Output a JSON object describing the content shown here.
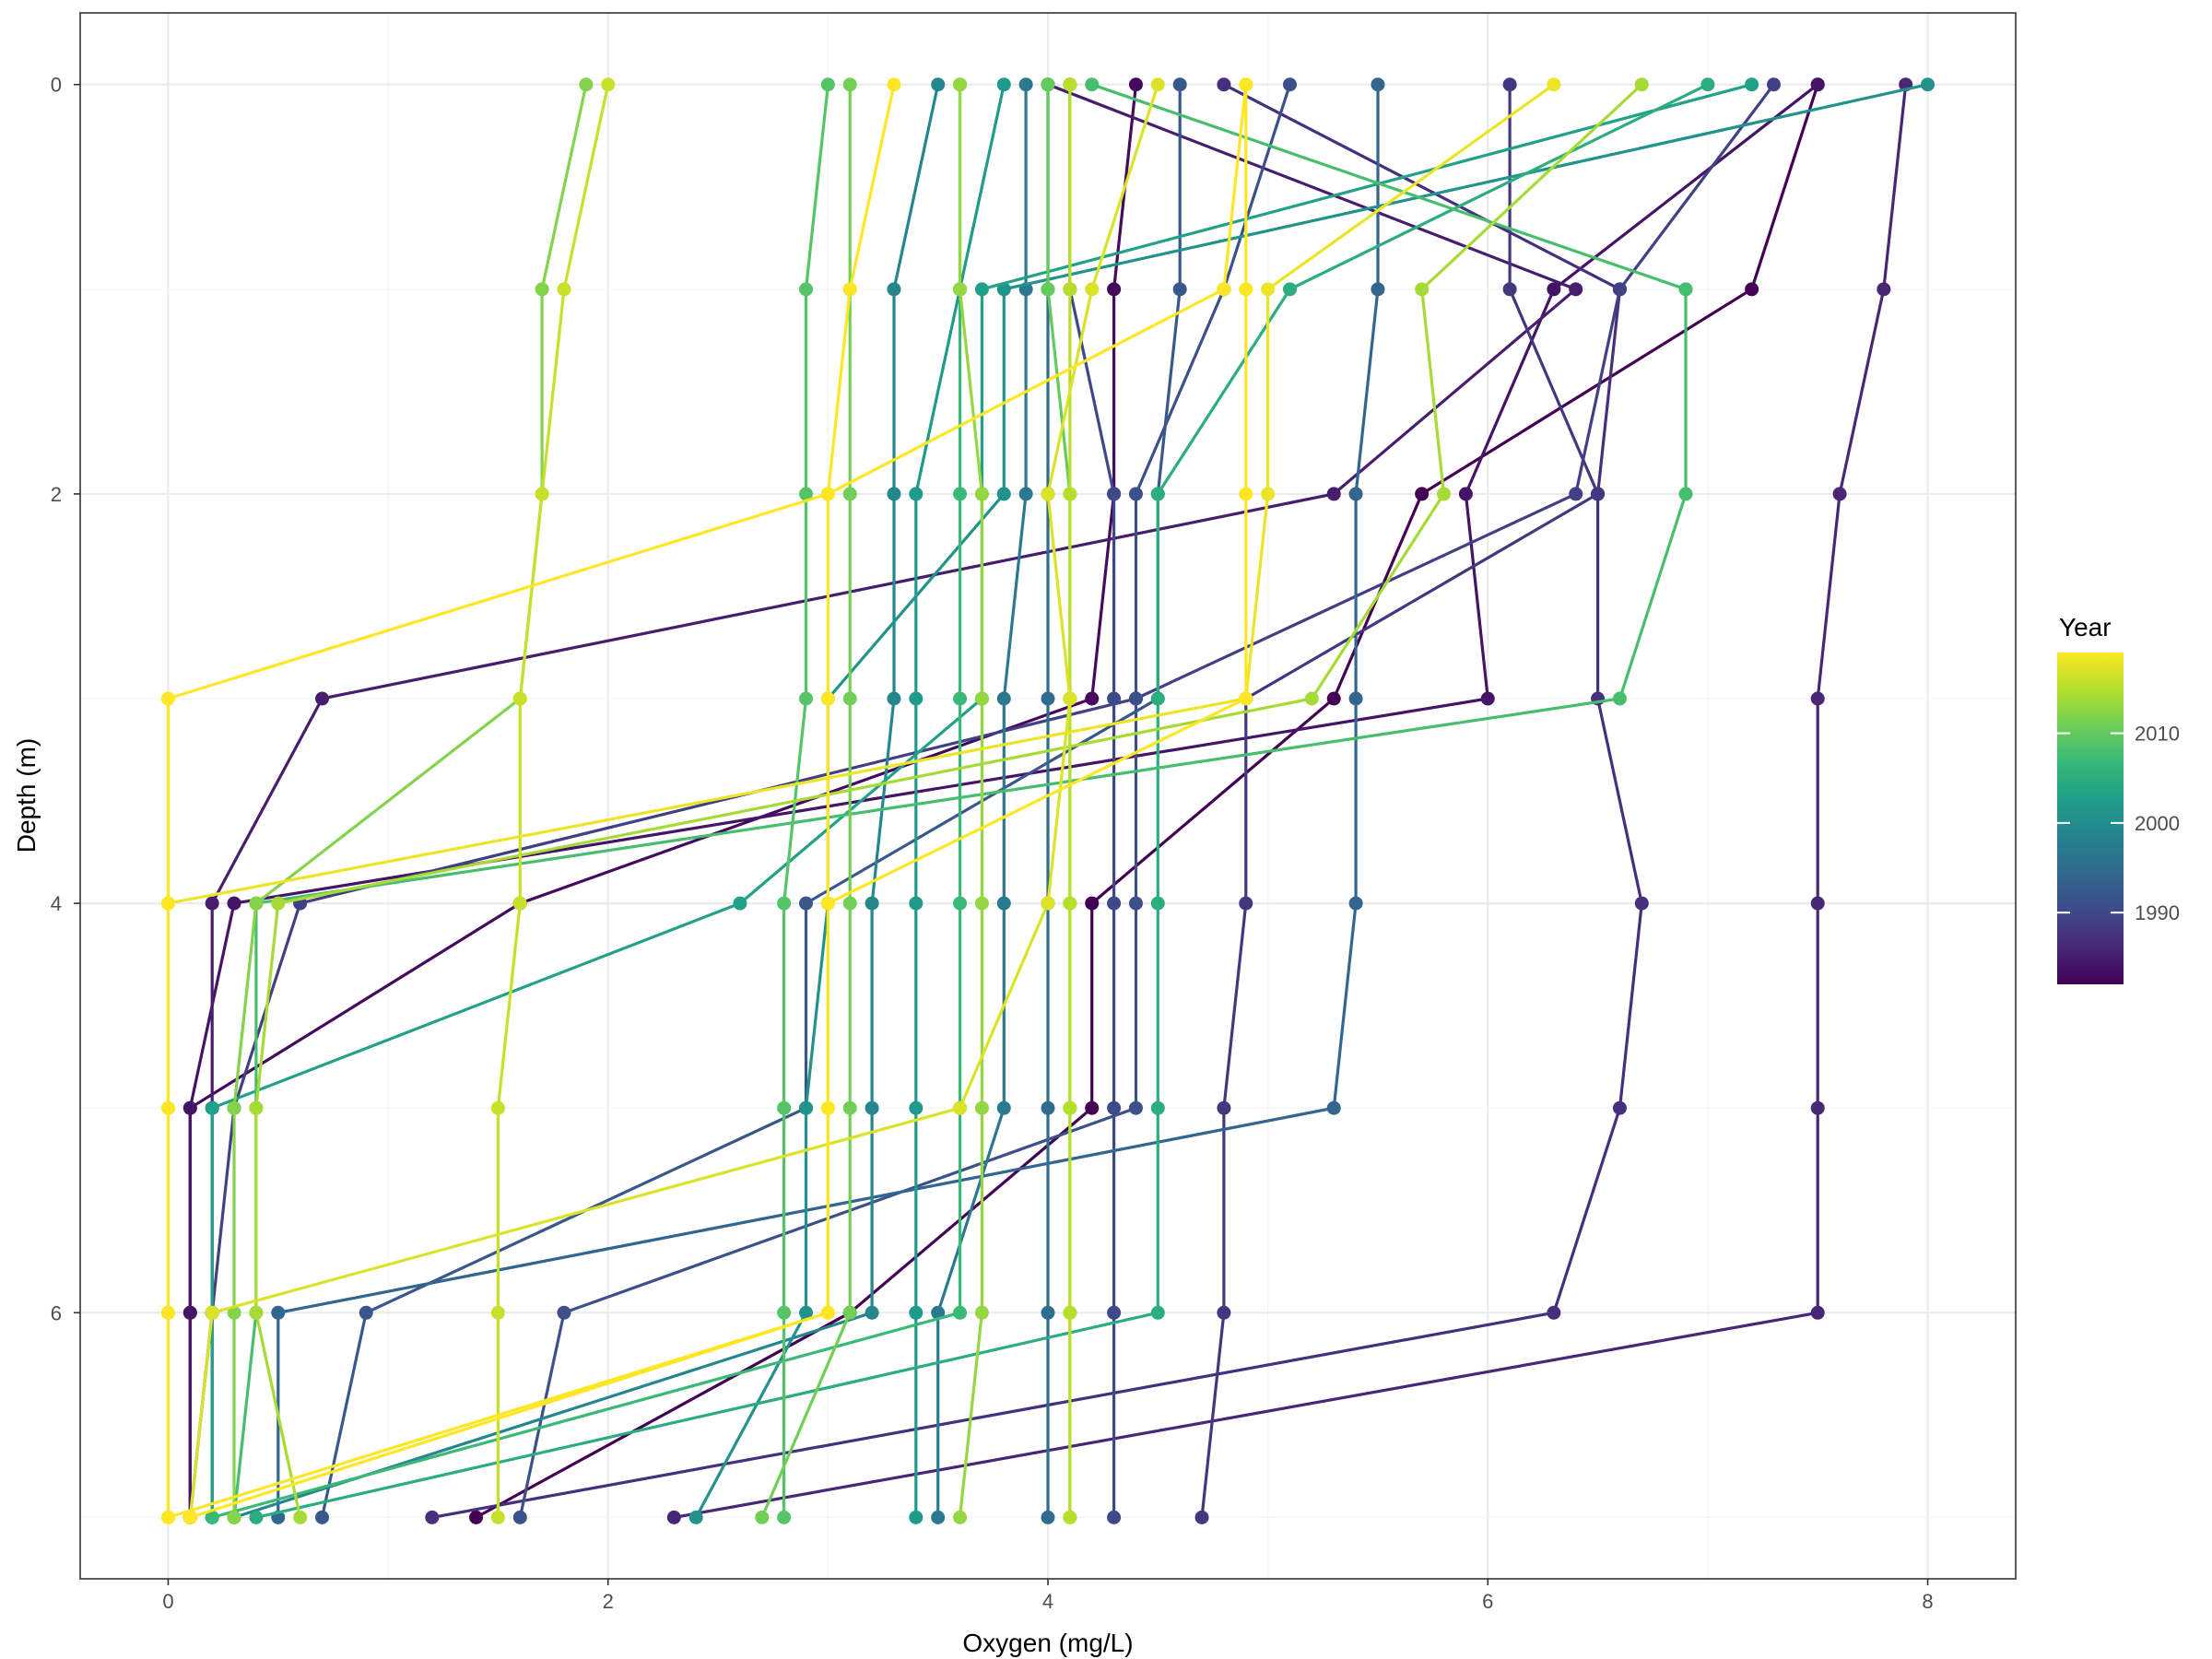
{
  "chart_data": {
    "type": "line",
    "xlabel": "Oxygen (mg/L)",
    "ylabel": "Depth (m)",
    "xlim": [
      -0.4,
      8.4
    ],
    "ylim": [
      7.3,
      -0.35
    ],
    "y_reversed": true,
    "x_ticks": [
      0,
      2,
      4,
      6,
      8
    ],
    "y_ticks": [
      0,
      2,
      4,
      6
    ],
    "grid": true,
    "theme": "bw",
    "legend": {
      "title": "Year",
      "position": "right",
      "type": "colorbar",
      "palette": "viridis",
      "range": [
        1982,
        2019
      ],
      "breaks": [
        1990,
        2000,
        2010
      ]
    },
    "series": [
      {
        "year": 1982,
        "oxygen": [
          7.5,
          7.2,
          5.7,
          5.3,
          4.2,
          4.2,
          3.1,
          1.4
        ],
        "depth": [
          0,
          1,
          2,
          3,
          4,
          5,
          6,
          7
        ]
      },
      {
        "year": 1983,
        "oxygen": [
          4.4,
          4.3,
          4.3,
          4.2,
          1.6,
          0.1,
          0.1,
          0.1
        ],
        "depth": [
          0,
          1,
          2,
          3,
          4,
          5,
          6,
          7
        ]
      },
      {
        "year": 1984,
        "oxygen": [
          7.5,
          6.3,
          5.9,
          6.0,
          0.3,
          0.1,
          0.1,
          0.1
        ],
        "depth": [
          0,
          1,
          2,
          3,
          4,
          5,
          6,
          7
        ]
      },
      {
        "year": 1985,
        "oxygen": [
          4.0,
          6.4,
          5.3,
          0.7,
          0.2,
          0.2,
          0.2,
          0.2
        ],
        "depth": [
          0,
          1,
          2,
          3,
          4,
          5,
          6,
          7
        ]
      },
      {
        "year": 1986,
        "oxygen": [
          7.9,
          7.8,
          7.6,
          7.5,
          7.5,
          7.5,
          7.5,
          2.3
        ],
        "depth": [
          0,
          1,
          2,
          3,
          4,
          5,
          6,
          7
        ]
      },
      {
        "year": 1987,
        "oxygen": [
          4.8,
          6.6,
          6.5,
          6.5,
          6.7,
          6.6,
          6.3,
          1.2
        ],
        "depth": [
          0,
          1,
          2,
          3,
          4,
          5,
          6,
          7
        ]
      },
      {
        "year": 1988,
        "oxygen": [
          6.1,
          6.1,
          6.5,
          4.9,
          4.9,
          4.8,
          4.8,
          4.7
        ],
        "depth": [
          0,
          1,
          2,
          3,
          4,
          5,
          6,
          7
        ]
      },
      {
        "year": 1989,
        "oxygen": [
          7.3,
          6.6,
          6.4,
          4.4,
          0.6,
          0.3,
          0.2,
          0.1
        ],
        "depth": [
          0,
          1,
          2,
          3,
          4,
          5,
          6,
          7
        ]
      },
      {
        "year": 1990,
        "oxygen": [
          4.1,
          4.1,
          4.3,
          4.3,
          4.3,
          4.3,
          4.3,
          4.3
        ],
        "depth": [
          0,
          1,
          2,
          3,
          4,
          5,
          6,
          7
        ]
      },
      {
        "year": 1991,
        "oxygen": [
          5.1,
          4.8,
          4.4,
          4.4,
          4.4,
          4.4,
          1.8,
          1.6
        ],
        "depth": [
          0,
          1,
          2,
          3,
          4,
          5,
          6,
          7
        ]
      },
      {
        "year": 1992,
        "oxygen": [
          4.6,
          4.6,
          4.5,
          4.5,
          2.9,
          2.9,
          0.9,
          0.7
        ],
        "depth": [
          0,
          1,
          2,
          3,
          4,
          5,
          6,
          7
        ]
      },
      {
        "year": 1994,
        "oxygen": [
          5.5,
          5.5,
          5.4,
          5.4,
          5.4,
          5.3,
          0.5,
          0.5
        ],
        "depth": [
          0,
          1,
          2,
          3,
          4,
          5,
          6,
          7
        ]
      },
      {
        "year": 1995,
        "oxygen": [
          4.0,
          4.0,
          4.0,
          4.0,
          4.0,
          4.0,
          4.0,
          4.0
        ],
        "depth": [
          0,
          1,
          2,
          3,
          4,
          5,
          6,
          7
        ]
      },
      {
        "year": 1997,
        "oxygen": [
          3.9,
          3.9,
          3.9,
          3.8,
          3.8,
          3.8,
          3.5,
          3.5
        ],
        "depth": [
          0,
          1,
          2,
          3,
          4,
          5,
          6,
          7
        ]
      },
      {
        "year": 1999,
        "oxygen": [
          3.5,
          3.3,
          3.3,
          3.3,
          3.2,
          3.2,
          3.2,
          0.3
        ],
        "depth": [
          0,
          1,
          2,
          3,
          4,
          5,
          6,
          7
        ]
      },
      {
        "year": 2001,
        "oxygen": [
          8.0,
          3.8,
          3.8,
          3.0,
          3.0,
          2.9,
          2.9,
          2.4
        ],
        "depth": [
          0,
          1,
          2,
          3,
          4,
          5,
          6,
          7
        ]
      },
      {
        "year": 2002,
        "oxygen": [
          3.8,
          3.6,
          3.4,
          3.4,
          3.4,
          3.4,
          3.4,
          3.4
        ],
        "depth": [
          0,
          1,
          2,
          3,
          4,
          5,
          6,
          7
        ]
      },
      {
        "year": 2003,
        "oxygen": [
          7.2,
          3.7,
          3.7,
          3.7,
          2.6,
          0.2,
          0.2,
          0.2
        ],
        "depth": [
          0,
          1,
          2,
          3,
          4,
          5,
          6,
          7
        ]
      },
      {
        "year": 2005,
        "oxygen": [
          7.0,
          5.1,
          4.5,
          4.5,
          4.5,
          4.5,
          4.5,
          0.4
        ],
        "depth": [
          0,
          1,
          2,
          3,
          4,
          5,
          6,
          7
        ]
      },
      {
        "year": 2007,
        "oxygen": [
          3.6,
          3.6,
          3.6,
          3.6,
          3.6,
          3.6,
          3.6,
          0.2
        ],
        "depth": [
          0,
          1,
          2,
          3,
          4,
          5,
          6,
          7
        ]
      },
      {
        "year": 2008,
        "oxygen": [
          4.2,
          6.9,
          6.9,
          6.6,
          0.4,
          0.4,
          0.4,
          0.3
        ],
        "depth": [
          0,
          1,
          2,
          3,
          4,
          5,
          6,
          7
        ]
      },
      {
        "year": 2009,
        "oxygen": [
          3.0,
          2.9,
          2.9,
          2.9,
          2.8,
          2.8,
          2.8,
          2.8
        ],
        "depth": [
          0,
          1,
          2,
          3,
          4,
          5,
          6,
          7
        ]
      },
      {
        "year": 2010,
        "oxygen": [
          4.0,
          4.0,
          4.1,
          4.1,
          4.1,
          4.1,
          4.1,
          4.1
        ],
        "depth": [
          0,
          1,
          2,
          3,
          4,
          5,
          6,
          7
        ]
      },
      {
        "year": 2011,
        "oxygen": [
          3.1,
          3.1,
          3.1,
          3.1,
          3.1,
          3.1,
          3.1,
          2.7
        ],
        "depth": [
          0,
          1,
          2,
          3,
          4,
          5,
          6,
          7
        ]
      },
      {
        "year": 2012,
        "oxygen": [
          1.9,
          1.7,
          1.7,
          1.6,
          0.4,
          0.3,
          0.3,
          0.3
        ],
        "depth": [
          0,
          1,
          2,
          3,
          4,
          5,
          6,
          7
        ]
      },
      {
        "year": 2013,
        "oxygen": [
          3.6,
          3.6,
          3.7,
          3.7,
          3.7,
          3.7,
          3.7,
          3.6
        ],
        "depth": [
          0,
          1,
          2,
          3,
          4,
          5,
          6,
          7
        ]
      },
      {
        "year": 2014,
        "oxygen": [
          6.7,
          5.7,
          5.8,
          5.2,
          0.5,
          0.4,
          0.4,
          0.6
        ],
        "depth": [
          0,
          1,
          2,
          3,
          4,
          5,
          6,
          7
        ]
      },
      {
        "year": 2015,
        "oxygen": [
          4.1,
          4.1,
          4.1,
          4.1,
          4.1,
          4.1,
          4.1,
          4.1
        ],
        "depth": [
          0,
          1,
          2,
          3,
          4,
          5,
          6,
          7
        ]
      },
      {
        "year": 2016,
        "oxygen": [
          2.0,
          1.8,
          1.7,
          1.6,
          1.6,
          1.5,
          1.5,
          1.5
        ],
        "depth": [
          0,
          1,
          2,
          3,
          4,
          5,
          6,
          7
        ]
      },
      {
        "year": 2017,
        "oxygen": [
          4.5,
          4.2,
          4.0,
          4.1,
          4.0,
          3.6,
          0.2,
          0.1
        ],
        "depth": [
          0,
          1,
          2,
          3,
          4,
          5,
          6,
          7
        ]
      },
      {
        "year": 2018,
        "oxygen": [
          6.3,
          5.0,
          5.0,
          4.9,
          0.0,
          0.0,
          0.0,
          0.0
        ],
        "depth": [
          0,
          1,
          2,
          3,
          4,
          5,
          6,
          7
        ]
      },
      {
        "year": 2019,
        "oxygen": [
          3.3,
          3.1,
          3.0,
          3.0,
          3.0,
          3.0,
          3.0,
          0.1
        ],
        "depth": [
          0,
          1,
          2,
          3,
          4,
          5,
          6,
          7
        ]
      },
      {
        "year": 2019,
        "oxygen": [
          4.9,
          4.9,
          4.9,
          4.9,
          3.0,
          3.0,
          3.0,
          0.0
        ],
        "depth": [
          0,
          1,
          2,
          3,
          4,
          5,
          6,
          7
        ]
      },
      {
        "year": 2019,
        "oxygen": [
          4.9,
          4.8,
          3.0,
          0.0,
          0.0,
          0.0,
          0.0,
          0.0
        ],
        "depth": [
          0,
          1,
          2,
          3,
          4,
          5,
          6,
          7
        ]
      }
    ]
  }
}
